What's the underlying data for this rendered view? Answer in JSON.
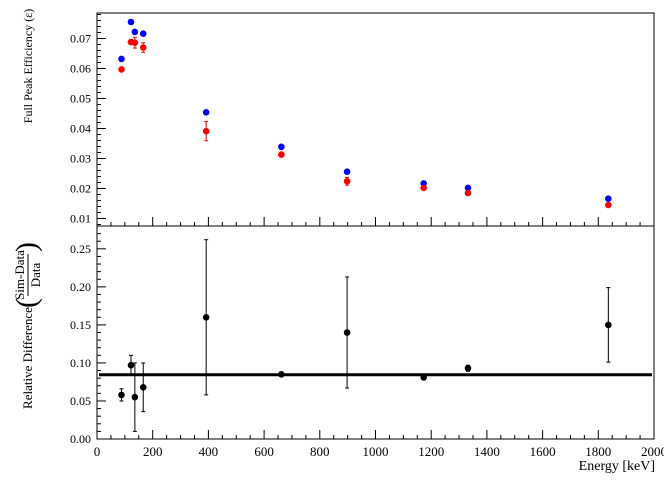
{
  "chart_data": [
    {
      "type": "scatter",
      "title": "",
      "xlabel": "",
      "ylabel": "Full Peak Efficiency (ε)",
      "xlim": [
        0,
        2000
      ],
      "ylim": [
        0.0075,
        0.0785
      ],
      "yticks": [
        "0.01",
        "0.02",
        "0.03",
        "0.04",
        "0.05",
        "0.06",
        "0.07"
      ],
      "grid": false,
      "series": [
        {
          "color": "#0000ff",
          "points": [
            {
              "x": 88,
              "y": 0.0632,
              "err": 0
            },
            {
              "x": 122,
              "y": 0.0755,
              "err": 0
            },
            {
              "x": 136,
              "y": 0.0722,
              "err": 0
            },
            {
              "x": 166,
              "y": 0.0716,
              "err": 0
            },
            {
              "x": 392,
              "y": 0.0454,
              "err": 0
            },
            {
              "x": 662,
              "y": 0.0339,
              "err": 0
            },
            {
              "x": 898,
              "y": 0.0256,
              "err": 0
            },
            {
              "x": 1173,
              "y": 0.0217,
              "err": 0
            },
            {
              "x": 1332,
              "y": 0.0202,
              "err": 0
            },
            {
              "x": 1836,
              "y": 0.0166,
              "err": 0
            }
          ]
        },
        {
          "color": "#ff0000",
          "points": [
            {
              "x": 88,
              "y": 0.0597,
              "err": 0
            },
            {
              "x": 122,
              "y": 0.0688,
              "err": 0.0008
            },
            {
              "x": 136,
              "y": 0.0686,
              "err": 0.0018
            },
            {
              "x": 166,
              "y": 0.067,
              "err": 0.0016
            },
            {
              "x": 392,
              "y": 0.0391,
              "err": 0.0032
            },
            {
              "x": 662,
              "y": 0.0313,
              "err": 0
            },
            {
              "x": 898,
              "y": 0.0224,
              "err": 0.0013
            },
            {
              "x": 1173,
              "y": 0.0202,
              "err": 0
            },
            {
              "x": 1332,
              "y": 0.0185,
              "err": 0
            },
            {
              "x": 1836,
              "y": 0.0145,
              "err": 0
            }
          ]
        }
      ]
    },
    {
      "type": "scatter",
      "title": "",
      "xlabel": "Energy [keV]",
      "ylabel": "Relative Difference",
      "ylabel_fraction": {
        "numerator": "Sim-Data",
        "denominator": "Data"
      },
      "xlim": [
        0,
        2000
      ],
      "ylim": [
        0,
        0.28
      ],
      "xticks": [
        "0",
        "200",
        "400",
        "600",
        "800",
        "1000",
        "1200",
        "1400",
        "1600",
        "1800",
        "2000"
      ],
      "yticks": [
        "0.00",
        "0.05",
        "0.10",
        "0.15",
        "0.20",
        "0.25"
      ],
      "grid": false,
      "reference_line": {
        "y": 0.0845,
        "color": "#000000"
      },
      "series": [
        {
          "color": "#000000",
          "points": [
            {
              "x": 88,
              "y": 0.058,
              "err": 0.008
            },
            {
              "x": 122,
              "y": 0.097,
              "err": 0.013
            },
            {
              "x": 136,
              "y": 0.055,
              "err": 0.045
            },
            {
              "x": 166,
              "y": 0.068,
              "err": 0.032
            },
            {
              "x": 392,
              "y": 0.16,
              "err": 0.102
            },
            {
              "x": 662,
              "y": 0.085,
              "err": 0.003
            },
            {
              "x": 898,
              "y": 0.14,
              "err": 0.073
            },
            {
              "x": 1173,
              "y": 0.081,
              "err": 0.003
            },
            {
              "x": 1332,
              "y": 0.093,
              "err": 0.004
            },
            {
              "x": 1836,
              "y": 0.15,
              "err": 0.049
            }
          ]
        }
      ]
    }
  ]
}
